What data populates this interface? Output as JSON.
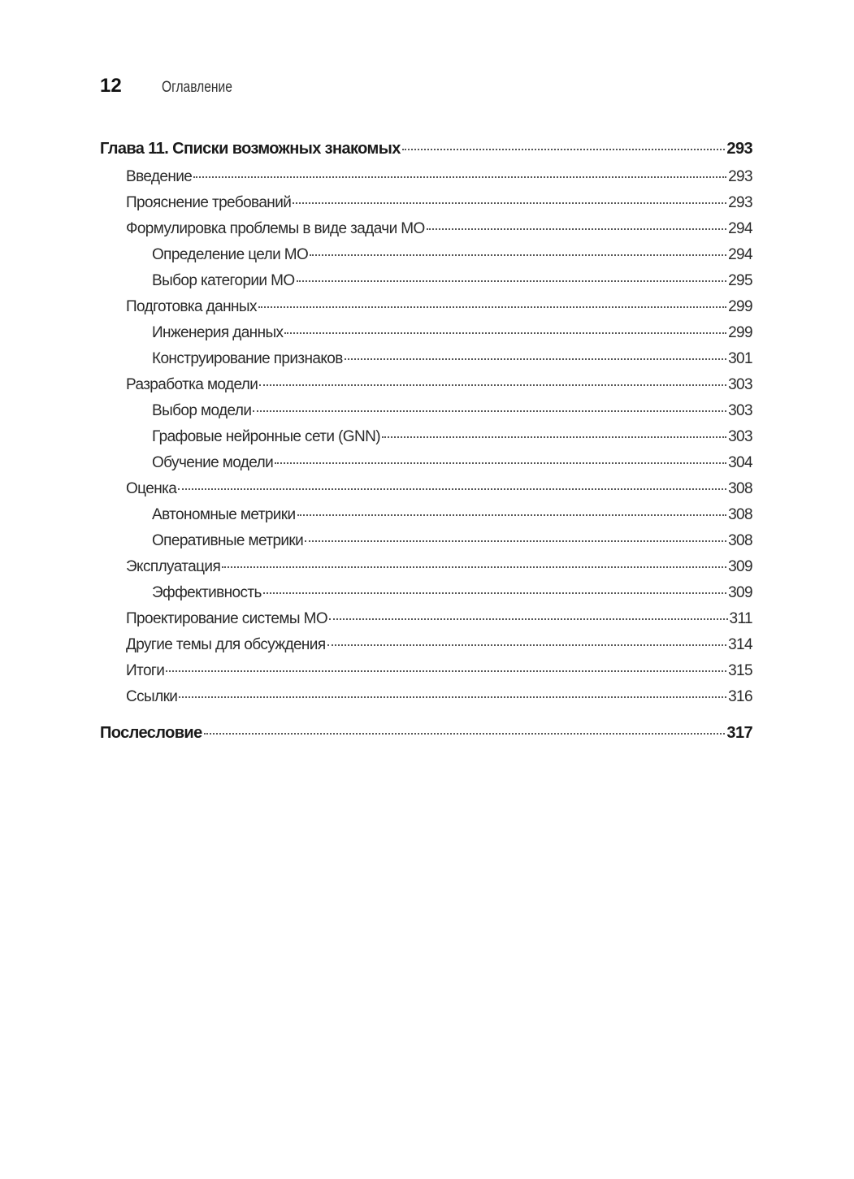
{
  "header": {
    "page_number": "12",
    "running_title": "Оглавление"
  },
  "toc": [
    {
      "level": 0,
      "title": "Глава 11. Списки возможных знакомых",
      "page": "293"
    },
    {
      "level": 1,
      "title": "Введение",
      "page": "293"
    },
    {
      "level": 1,
      "title": "Прояснение требований",
      "page": "293"
    },
    {
      "level": 1,
      "title": "Формулировка проблемы в виде задачи МО",
      "page": "294"
    },
    {
      "level": 2,
      "title": "Определение цели МО",
      "page": "294"
    },
    {
      "level": 2,
      "title": "Выбор категории МО",
      "page": "295"
    },
    {
      "level": 1,
      "title": "Подготовка данных",
      "page": "299"
    },
    {
      "level": 2,
      "title": "Инженерия данных",
      "page": "299"
    },
    {
      "level": 2,
      "title": "Конструирование признаков",
      "page": "301"
    },
    {
      "level": 1,
      "title": "Разработка модели",
      "page": "303"
    },
    {
      "level": 2,
      "title": "Выбор модели",
      "page": "303"
    },
    {
      "level": 2,
      "title": "Графовые нейронные сети (GNN)",
      "page": "303"
    },
    {
      "level": 2,
      "title": "Обучение модели",
      "page": "304"
    },
    {
      "level": 1,
      "title": "Оценка",
      "page": "308"
    },
    {
      "level": 2,
      "title": "Автономные метрики",
      "page": "308"
    },
    {
      "level": 2,
      "title": "Оперативные метрики",
      "page": "308"
    },
    {
      "level": 1,
      "title": "Эксплуатация",
      "page": "309"
    },
    {
      "level": 2,
      "title": "Эффективность",
      "page": "309"
    },
    {
      "level": 1,
      "title": "Проектирование системы МО",
      "page": "311"
    },
    {
      "level": 1,
      "title": "Другие темы для обсуждения",
      "page": "314"
    },
    {
      "level": 1,
      "title": "Итоги",
      "page": "315"
    },
    {
      "level": 1,
      "title": "Ссылки",
      "page": "316"
    },
    {
      "level": 0,
      "title": "Послесловие",
      "page": "317",
      "after": true
    }
  ]
}
